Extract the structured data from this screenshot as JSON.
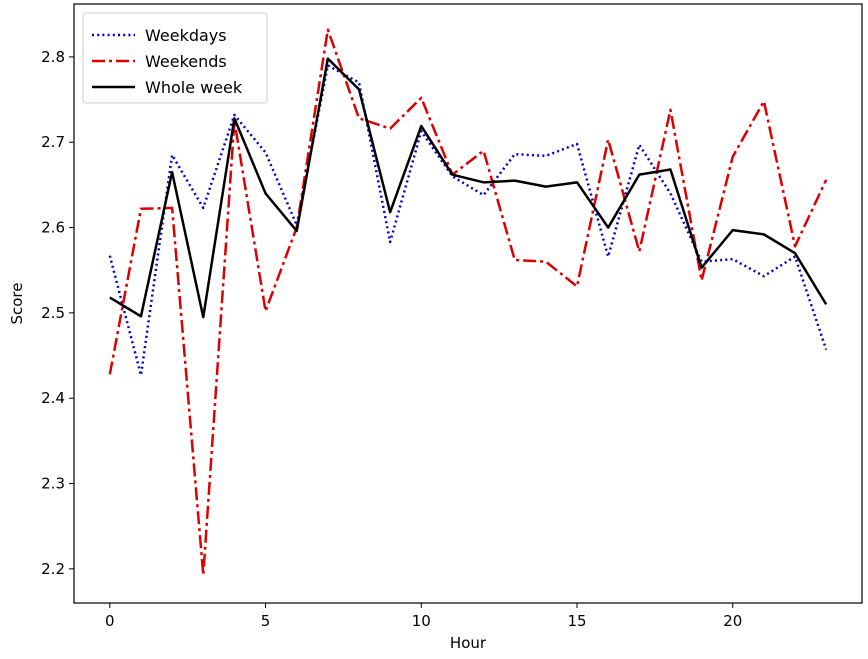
{
  "chart_data": {
    "type": "line",
    "title": "",
    "xlabel": "Hour",
    "ylabel": "Score",
    "xlim": [
      -1.15,
      24.15
    ],
    "ylim": [
      2.16,
      2.862
    ],
    "xticks": [
      0,
      5,
      10,
      15,
      20
    ],
    "xtick_labels": [
      "0",
      "5",
      "10",
      "15",
      "20"
    ],
    "yticks": [
      2.2,
      2.3,
      2.4,
      2.5,
      2.6,
      2.7,
      2.8
    ],
    "ytick_labels": [
      "2.2",
      "2.3",
      "2.4",
      "2.5",
      "2.6",
      "2.7",
      "2.8"
    ],
    "grid": false,
    "legend_position": "top-left",
    "x": [
      0,
      1,
      2,
      3,
      4,
      5,
      6,
      7,
      8,
      9,
      10,
      11,
      12,
      13,
      14,
      15,
      16,
      17,
      18,
      19,
      20,
      21,
      22,
      23
    ],
    "series": [
      {
        "name": "Weekdays",
        "color": "#0000cc",
        "style": "dotted",
        "values": [
          2.567,
          2.427,
          2.685,
          2.623,
          2.732,
          2.688,
          2.603,
          2.79,
          2.77,
          2.583,
          2.713,
          2.66,
          2.638,
          2.686,
          2.684,
          2.698,
          2.566,
          2.697,
          2.64,
          2.56,
          2.563,
          2.543,
          2.566,
          2.457
        ]
      },
      {
        "name": "Weekends",
        "color": "#dd0000",
        "style": "dashdot",
        "values": [
          2.428,
          2.622,
          2.623,
          2.193,
          2.725,
          2.502,
          2.6,
          2.832,
          2.728,
          2.716,
          2.752,
          2.662,
          2.69,
          2.562,
          2.56,
          2.531,
          2.703,
          2.572,
          2.738,
          2.538,
          2.683,
          2.748,
          2.578,
          2.656
        ]
      },
      {
        "name": "Whole week",
        "color": "#000000",
        "style": "solid",
        "values": [
          2.518,
          2.496,
          2.665,
          2.495,
          2.728,
          2.64,
          2.596,
          2.798,
          2.762,
          2.618,
          2.719,
          2.662,
          2.653,
          2.655,
          2.648,
          2.653,
          2.6,
          2.662,
          2.668,
          2.553,
          2.597,
          2.592,
          2.57,
          2.51
        ]
      }
    ]
  }
}
